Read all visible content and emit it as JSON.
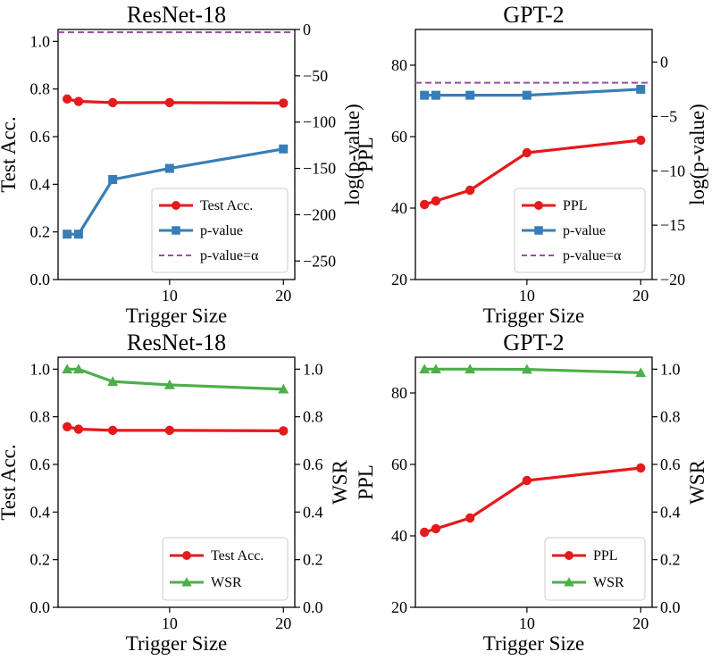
{
  "chart_data": [
    {
      "type": "line",
      "title": "ResNet-18",
      "xlabel": "Trigger Size",
      "ylabel": "Test Acc.",
      "y2label": "log(p-value)",
      "x": [
        1,
        2,
        5,
        10,
        20
      ],
      "xlim": [
        0.2,
        21
      ],
      "ylim": [
        0,
        1.05
      ],
      "y2lim": [
        -270,
        0
      ],
      "x_ticks": [
        10,
        20
      ],
      "y_ticks": [
        0.0,
        0.2,
        0.4,
        0.6,
        0.8,
        1.0
      ],
      "y_tick_labels": [
        "0.0",
        "0.2",
        "0.4",
        "0.6",
        "0.8",
        "1.0"
      ],
      "y2_ticks": [
        0,
        -50,
        -100,
        -150,
        -200,
        -250
      ],
      "y2_tick_labels": [
        "0",
        "−50",
        "−100",
        "−150",
        "−200",
        "−250"
      ],
      "series": [
        {
          "name": "Test Acc.",
          "axis": "left",
          "color": "#e41a1c",
          "marker": "circle",
          "values": [
            0.758,
            0.748,
            0.743,
            0.743,
            0.741
          ]
        },
        {
          "name": "p-value",
          "axis": "right",
          "color": "#377eb8",
          "marker": "square",
          "values": [
            -221,
            -221,
            -162,
            -150,
            -129
          ]
        },
        {
          "name": "p-value=α",
          "axis": "right",
          "color": "#984ea3",
          "marker": "none",
          "dashed": true,
          "hline": -3
        }
      ],
      "legend": "lower-right"
    },
    {
      "type": "line",
      "title": "GPT-2",
      "xlabel": "Trigger Size",
      "ylabel": "PPL",
      "y2label": "log(p-value)",
      "x": [
        1,
        2,
        5,
        10,
        20
      ],
      "xlim": [
        0.2,
        21
      ],
      "ylim": [
        20,
        90
      ],
      "y2lim": [
        -20,
        3
      ],
      "x_ticks": [
        10,
        20
      ],
      "y_ticks": [
        20,
        40,
        60,
        80
      ],
      "y_tick_labels": [
        "20",
        "40",
        "60",
        "80"
      ],
      "y2_ticks": [
        0,
        -5,
        -10,
        -15,
        -20
      ],
      "y2_tick_labels": [
        "0",
        "−5",
        "−10",
        "−15",
        "−20"
      ],
      "series": [
        {
          "name": "PPL",
          "axis": "left",
          "color": "#e41a1c",
          "marker": "circle",
          "values": [
            41,
            42,
            45,
            55.5,
            59
          ]
        },
        {
          "name": "p-value",
          "axis": "right",
          "color": "#377eb8",
          "marker": "square",
          "values": [
            -3.05,
            -3.05,
            -3.05,
            -3.05,
            -2.5
          ]
        },
        {
          "name": "p-value=α",
          "axis": "right",
          "color": "#984ea3",
          "marker": "none",
          "dashed": true,
          "hline": -1.9
        }
      ],
      "legend": "lower-right"
    },
    {
      "type": "line",
      "title": "ResNet-18",
      "xlabel": "Trigger Size",
      "ylabel": "Test Acc.",
      "y2label": "WSR",
      "x": [
        1,
        2,
        5,
        10,
        20
      ],
      "xlim": [
        0.2,
        21
      ],
      "ylim": [
        0,
        1.05
      ],
      "y2lim": [
        0,
        1.05
      ],
      "x_ticks": [
        10,
        20
      ],
      "y_ticks": [
        0.0,
        0.2,
        0.4,
        0.6,
        0.8,
        1.0
      ],
      "y_tick_labels": [
        "0.0",
        "0.2",
        "0.4",
        "0.6",
        "0.8",
        "1.0"
      ],
      "y2_ticks": [
        0.0,
        0.2,
        0.4,
        0.6,
        0.8,
        1.0
      ],
      "y2_tick_labels": [
        "0.0",
        "0.2",
        "0.4",
        "0.6",
        "0.8",
        "1.0"
      ],
      "series": [
        {
          "name": "Test Acc.",
          "axis": "left",
          "color": "#e41a1c",
          "marker": "circle",
          "values": [
            0.758,
            0.748,
            0.743,
            0.743,
            0.741
          ]
        },
        {
          "name": "WSR",
          "axis": "right",
          "color": "#4daf4a",
          "marker": "triangle",
          "values": [
            1.0,
            1.0,
            0.948,
            0.934,
            0.916
          ]
        }
      ],
      "legend": "lower-right"
    },
    {
      "type": "line",
      "title": "GPT-2",
      "xlabel": "Trigger Size",
      "ylabel": "PPL",
      "y2label": "WSR",
      "x": [
        1,
        2,
        5,
        10,
        20
      ],
      "xlim": [
        0.2,
        21
      ],
      "ylim": [
        20,
        90
      ],
      "y2lim": [
        0,
        1.05
      ],
      "x_ticks": [
        10,
        20
      ],
      "y_ticks": [
        20,
        40,
        60,
        80
      ],
      "y_tick_labels": [
        "20",
        "40",
        "60",
        "80"
      ],
      "y2_ticks": [
        0.0,
        0.2,
        0.4,
        0.6,
        0.8,
        1.0
      ],
      "y2_tick_labels": [
        "0.0",
        "0.2",
        "0.4",
        "0.6",
        "0.8",
        "1.0"
      ],
      "series": [
        {
          "name": "PPL",
          "axis": "left",
          "color": "#e41a1c",
          "marker": "circle",
          "values": [
            41,
            42,
            45,
            55.5,
            59
          ]
        },
        {
          "name": "WSR",
          "axis": "right",
          "color": "#4daf4a",
          "marker": "triangle",
          "values": [
            1.0,
            1.0,
            1.0,
            0.999,
            0.985
          ]
        }
      ],
      "legend": "lower-right"
    }
  ]
}
